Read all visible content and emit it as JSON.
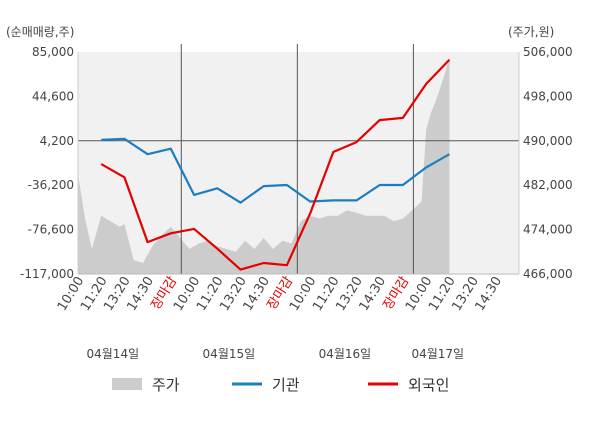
{
  "chart_data": {
    "type": "line",
    "left_unit": "(순매매량,주)",
    "right_unit": "(주가,원)",
    "left_axis": {
      "ticks": [
        "85,000",
        "44,600",
        "4,200",
        "-36,200",
        "-76,600",
        "-117,000"
      ],
      "ylim": [
        -117000,
        85000
      ]
    },
    "right_axis": {
      "ticks": [
        "506,000",
        "498,000",
        "490,000",
        "482,000",
        "474,000",
        "466,000"
      ],
      "ylim": [
        466000,
        506000
      ]
    },
    "x_ticks": [
      "10:00",
      "11:20",
      "13:20",
      "14:30",
      "장마감",
      "10:00",
      "11:20",
      "13:20",
      "14:30",
      "장마감",
      "10:00",
      "11:20",
      "13:20",
      "14:30",
      "장마감",
      "10:00",
      "11:20",
      "13:20",
      "14:30"
    ],
    "x_tick_red": [
      false,
      false,
      false,
      false,
      true,
      false,
      false,
      false,
      false,
      true,
      false,
      false,
      false,
      false,
      true,
      false,
      false,
      false,
      false
    ],
    "x_tick_pos": [
      0,
      1,
      2,
      3,
      4,
      5,
      6,
      7,
      8,
      9,
      10,
      11,
      12,
      13,
      14,
      15,
      16,
      17,
      18
    ],
    "dates": [
      {
        "label": "04월14일",
        "pos": 1.5
      },
      {
        "label": "04월15일",
        "pos": 6.5
      },
      {
        "label": "04월16일",
        "pos": 11.5
      },
      {
        "label": "04월17일",
        "pos": 15.5
      }
    ],
    "day_boundaries": [
      4.45,
      9.45,
      14.45
    ],
    "reference_line": 4200,
    "legend": [
      {
        "name": "주가",
        "style": "area",
        "color": "#cccccc"
      },
      {
        "name": "기관",
        "style": "line",
        "color": "#1b7ec2"
      },
      {
        "name": "외국인",
        "style": "line",
        "color": "#e60000"
      }
    ],
    "series": [
      {
        "name": "기관",
        "color": "#1b7ec2",
        "axis": "left",
        "x": [
          1,
          2,
          3,
          4,
          5,
          6,
          7,
          8,
          9,
          10,
          11,
          12,
          13,
          14,
          15,
          16,
          17,
          18,
          19,
          20
        ],
        "y": [
          5000,
          6000,
          -8000,
          -3000,
          -45000,
          -39000,
          -52000,
          -37000,
          -36000,
          -51000,
          -50000,
          -50000,
          -36000,
          -36000,
          -20000,
          -8000,
          null,
          null,
          null,
          null
        ]
      },
      {
        "name": "외국인",
        "color": "#e60000",
        "axis": "left",
        "x": [
          1,
          2,
          3,
          4,
          5,
          6,
          7,
          8,
          9,
          10,
          11,
          12,
          13,
          14,
          15,
          16,
          17,
          18,
          19,
          20
        ],
        "y": [
          -17000,
          -29000,
          -88000,
          -80000,
          -76000,
          -94000,
          -113000,
          -107000,
          -109000,
          -62000,
          -6000,
          3000,
          23000,
          25000,
          56000,
          78000,
          null,
          null,
          null,
          null
        ]
      },
      {
        "name": "주가",
        "color": "#cccccc",
        "axis": "right",
        "x": [
          0,
          0.3,
          0.6,
          1,
          1.4,
          1.8,
          2,
          2.4,
          2.8,
          3.2,
          3.6,
          4,
          4.4,
          4.8,
          5.2,
          5.6,
          6,
          6.4,
          6.8,
          7.2,
          7.6,
          8,
          8.4,
          8.8,
          9.2,
          9.6,
          10,
          10.4,
          10.8,
          11.2,
          11.6,
          12,
          12.4,
          12.8,
          13.2,
          13.6,
          14,
          14.4,
          14.8,
          15,
          15.2,
          15.4,
          15.6,
          15.8,
          16
        ],
        "y": [
          484000,
          476000,
          470500,
          476500,
          475500,
          474500,
          475000,
          468500,
          468000,
          471000,
          473000,
          474500,
          472500,
          470500,
          471500,
          472000,
          471000,
          470500,
          470000,
          472000,
          470500,
          472500,
          470500,
          472000,
          471500,
          475500,
          476500,
          476000,
          476500,
          476500,
          477500,
          477000,
          476500,
          476500,
          476500,
          475500,
          476000,
          477500,
          479000,
          492000,
          495000,
          497000,
          499500,
          502000,
          505000
        ]
      }
    ]
  }
}
